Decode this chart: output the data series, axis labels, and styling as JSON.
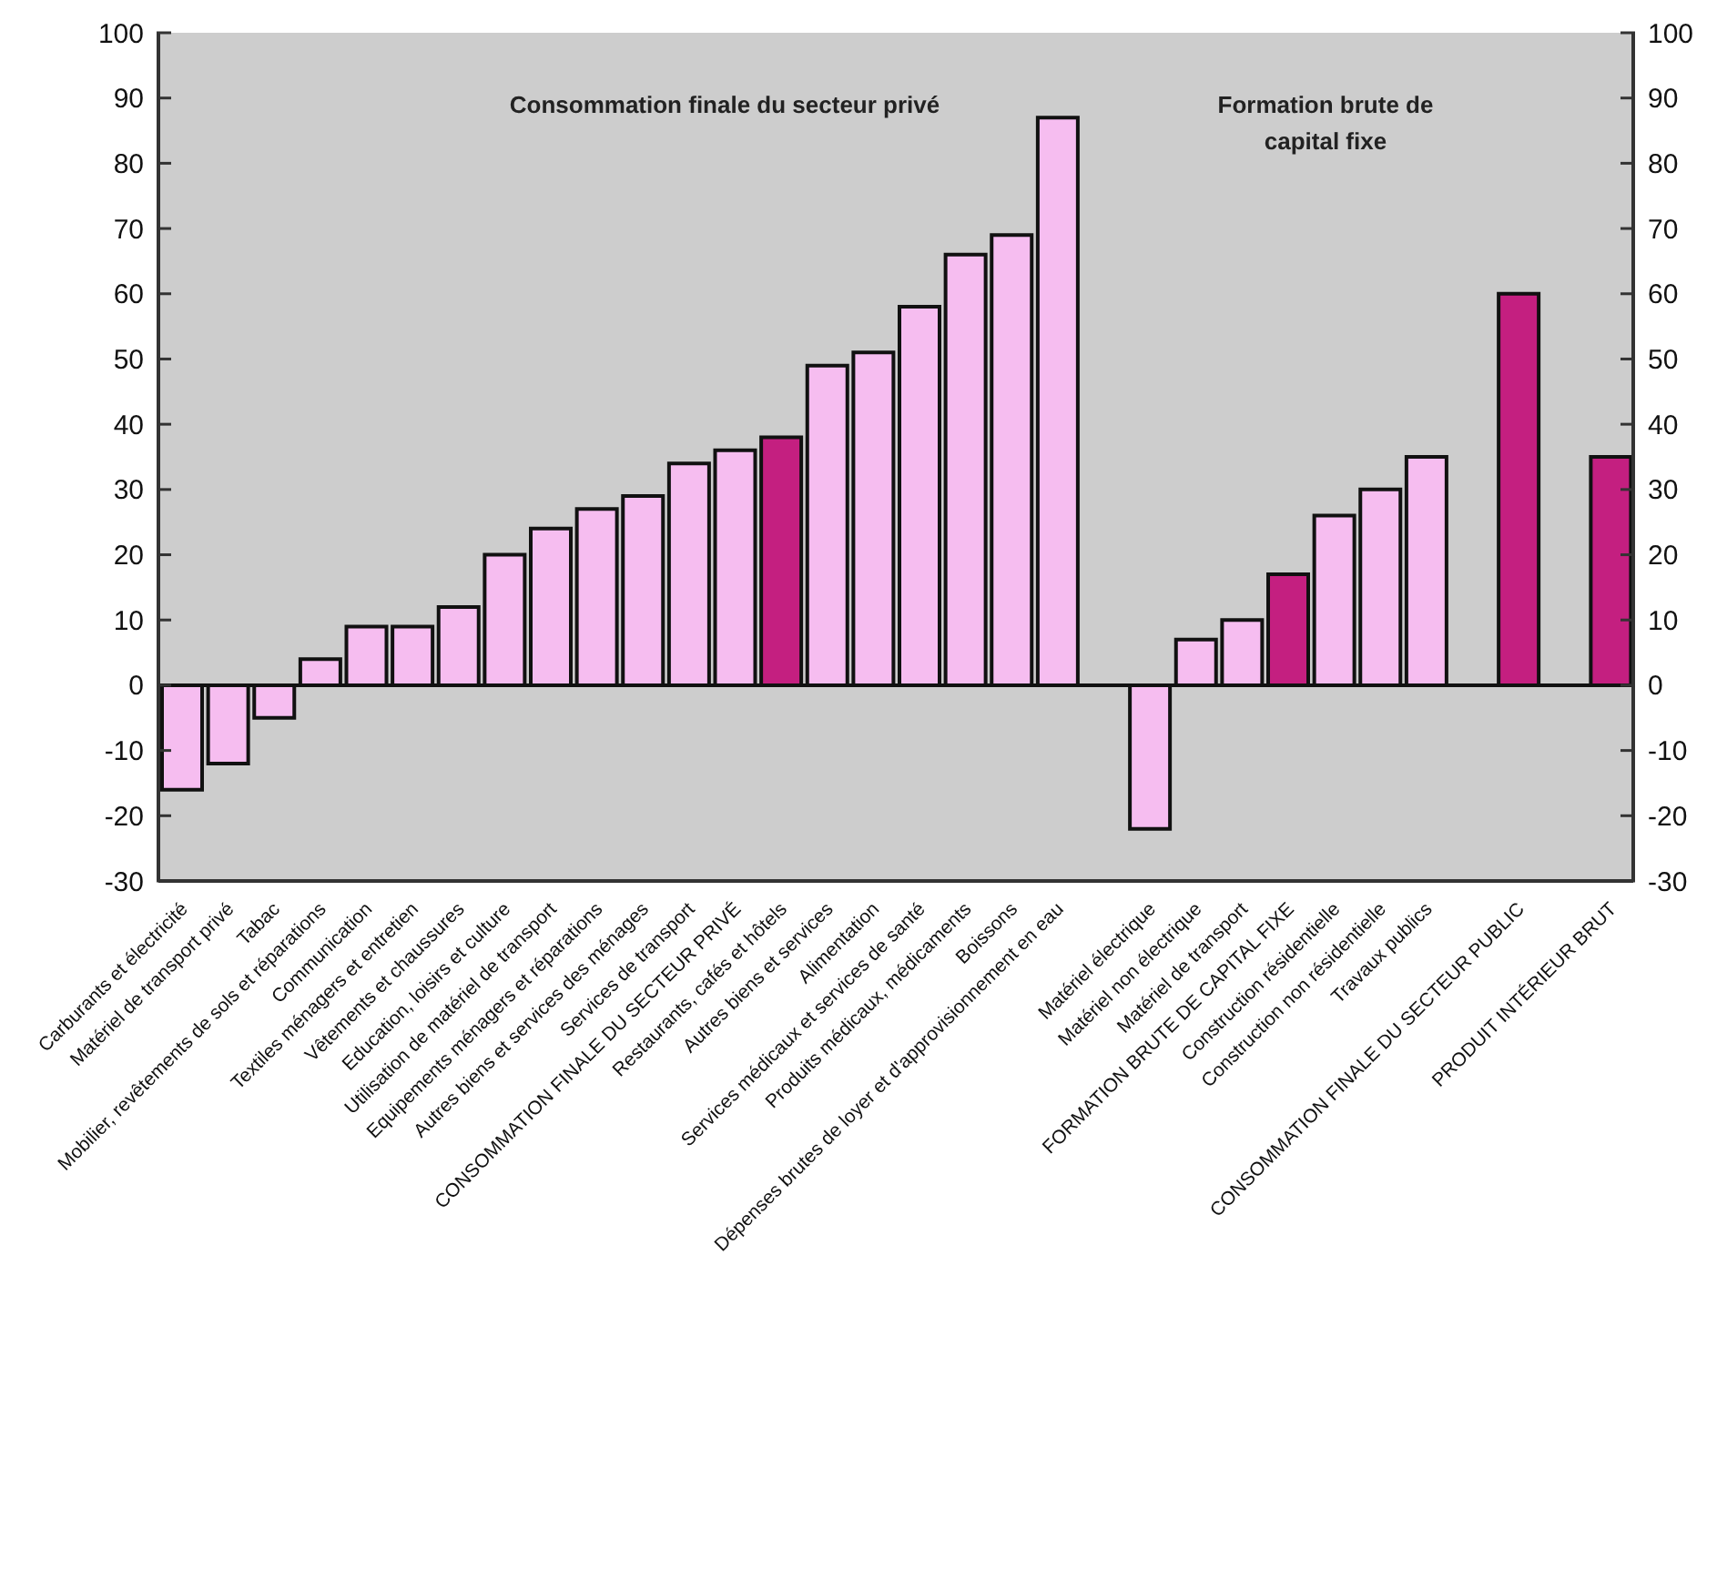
{
  "chart_data": {
    "type": "bar",
    "categories": [
      "Carburants et électricité",
      "Matériel de transport privé",
      "Tabac",
      "Mobilier, revêtements de sols et réparations",
      "Communication",
      "Textiles ménagers et entretien",
      "Vêtements et chaussures",
      "Education, loisirs et culture",
      "Utilisation de matériel de transport",
      "Equipements ménagers et réparations",
      "Autres biens et services des ménages",
      "Services de transport",
      "CONSOMMATION FINALE DU SECTEUR PRIVÉ",
      "Restaurants, cafés et hôtels",
      "Autres biens et services",
      "Alimentation",
      "Services médicaux et services de santé",
      "Produits médicaux, médicaments",
      "Boissons",
      "Dépenses brutes de loyer et d'approvisionnement en eau",
      null,
      "Matériel électrique",
      "Matériel non électrique",
      "Matériel de transport",
      "FORMATION BRUTE DE CAPITAL FIXE",
      "Construction résidentielle",
      "Construction non résidentielle",
      "Travaux publics",
      null,
      "CONSOMMATION FINALE DU SECTEUR PUBLIC",
      null,
      "PRODUIT INTÉRIEUR BRUT"
    ],
    "values": [
      -16,
      -12,
      -5,
      4,
      9,
      9,
      12,
      20,
      24,
      27,
      29,
      34,
      36,
      38,
      49,
      51,
      58,
      66,
      69,
      87,
      null,
      -22,
      7,
      10,
      17,
      26,
      30,
      35,
      null,
      60,
      null,
      35
    ],
    "colors": [
      "#f6bdf0",
      "#f6bdf0",
      "#f6bdf0",
      "#f6bdf0",
      "#f6bdf0",
      "#f6bdf0",
      "#f6bdf0",
      "#f6bdf0",
      "#f6bdf0",
      "#f6bdf0",
      "#f6bdf0",
      "#f6bdf0",
      "#f6bdf0",
      "#c41f80",
      "#f6bdf0",
      "#f6bdf0",
      "#f6bdf0",
      "#f6bdf0",
      "#f6bdf0",
      "#f6bdf0",
      "#f6bdf0",
      "#f6bdf0",
      "#f6bdf0",
      "#f6bdf0",
      "#c41f80",
      "#f6bdf0",
      "#f6bdf0",
      "#f6bdf0",
      "#f6bdf0",
      "#c41f80",
      "#f6bdf0",
      "#c41f80"
    ],
    "ylim": [
      -30,
      100
    ],
    "yticks": [
      -30,
      -20,
      -10,
      0,
      10,
      20,
      30,
      40,
      50,
      60,
      70,
      80,
      90,
      100
    ],
    "y2lim": [
      -30,
      100
    ],
    "y2ticks": [
      -30,
      -20,
      -10,
      0,
      10,
      20,
      30,
      40,
      50,
      60,
      70,
      80,
      90,
      100
    ],
    "ref_lines": [
      {
        "axis": "y",
        "value": 0,
        "color": "#111111"
      }
    ],
    "annotations": [
      "Consommation finale du secteur privé",
      "Formation brute de capital fixe"
    ]
  }
}
